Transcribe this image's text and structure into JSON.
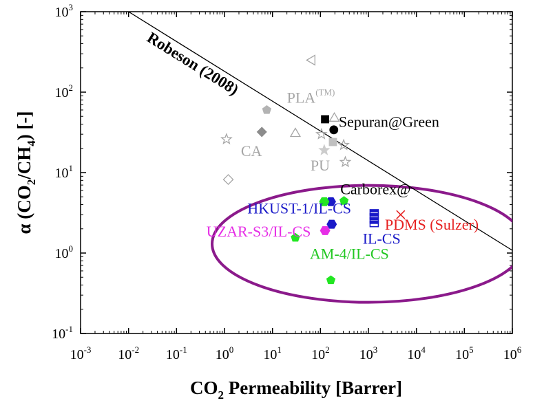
{
  "chart_data": {
    "type": "scatter",
    "xscale": "log",
    "yscale": "log",
    "xlim": [
      0.001,
      1000000
    ],
    "ylim": [
      0.1,
      1000
    ],
    "grid": false,
    "x_ticks": [
      {
        "base": "10",
        "exp": "-3",
        "value": 0.001
      },
      {
        "base": "10",
        "exp": "-2",
        "value": 0.01
      },
      {
        "base": "10",
        "exp": "-1",
        "value": 0.1
      },
      {
        "base": "10",
        "exp": "0",
        "value": 1
      },
      {
        "base": "10",
        "exp": "1",
        "value": 10
      },
      {
        "base": "10",
        "exp": "2",
        "value": 100
      },
      {
        "base": "10",
        "exp": "3",
        "value": 1000
      },
      {
        "base": "10",
        "exp": "4",
        "value": 10000
      },
      {
        "base": "10",
        "exp": "5",
        "value": 100000
      },
      {
        "base": "10",
        "exp": "6",
        "value": 1000000
      }
    ],
    "y_ticks": [
      {
        "base": "10",
        "exp": "-1",
        "value": 0.1
      },
      {
        "base": "10",
        "exp": "0",
        "value": 1
      },
      {
        "base": "10",
        "exp": "1",
        "value": 10
      },
      {
        "base": "10",
        "exp": "2",
        "value": 100
      },
      {
        "base": "10",
        "exp": "3",
        "value": 1000
      }
    ],
    "xlabel": {
      "pre": "CO",
      "sub": "2",
      "post": " Permeability [Barrer]"
    },
    "ylabel": {
      "alpha": "α",
      "pre": " (CO",
      "sub1": "2",
      "mid": "/CH",
      "sub2": "4",
      "post": ") [-]"
    },
    "robeson_line": {
      "label": "Robeson (2008)",
      "points": [
        {
          "x": 0.01,
          "y": 1000
        },
        {
          "x": 1000000,
          "y": 1.08
        }
      ]
    },
    "ellipse_region": {
      "cx": 1000,
      "cy": 1.3,
      "color": "#8b1a8b"
    },
    "annotations": [
      {
        "name": "pla-label",
        "text": "PLA",
        "sup": "(TM)",
        "x": 20,
        "y": 74,
        "color": "#a6a6a6"
      },
      {
        "name": "sepuran-label",
        "text": "Sepuran@Green",
        "x": 240,
        "y": 37,
        "color": "#000000"
      },
      {
        "name": "ca-label",
        "text": "CA",
        "x": 2.2,
        "y": 16,
        "color": "#a6a6a6"
      },
      {
        "name": "pu-label",
        "text": "PU",
        "x": 62,
        "y": 10.6,
        "color": "#a6a6a6"
      },
      {
        "name": "carborex-label",
        "text": "Carborex@",
        "x": 260,
        "y": 5.4,
        "color": "#000000"
      },
      {
        "name": "hkust-label",
        "text": "HKUST-1/IL-CS",
        "x": 3.0,
        "y": 3.1,
        "color": "#1a1ac8"
      },
      {
        "name": "uzar-label",
        "text": "UZAR-S3/IL-CS",
        "x": 0.42,
        "y": 1.6,
        "color": "#e62ee6"
      },
      {
        "name": "pdms-label",
        "text": "PDMS (Sulzer)",
        "x": 2200,
        "y": 1.95,
        "color": "#e62020"
      },
      {
        "name": "ilcs-label",
        "text": "IL-CS",
        "x": 760,
        "y": 1.3,
        "color": "#1a1ac8"
      },
      {
        "name": "am4-label",
        "text": "AM-4/IL-CS",
        "x": 60,
        "y": 0.85,
        "color": "#22c822"
      }
    ],
    "series": [
      {
        "marker": "triangle-left-open",
        "color": "#a6a6a6",
        "points": [
          {
            "x": 65,
            "y": 250
          }
        ]
      },
      {
        "marker": "pentagon",
        "color": "#b3b3b3",
        "points": [
          {
            "x": 7.6,
            "y": 60
          }
        ]
      },
      {
        "marker": "diamond",
        "color": "#8c8c8c",
        "points": [
          {
            "x": 6.0,
            "y": 32
          }
        ]
      },
      {
        "marker": "diamond-open",
        "color": "#a6a6a6",
        "points": [
          {
            "x": 1.2,
            "y": 8.2
          }
        ]
      },
      {
        "marker": "star-open",
        "color": "#a6a6a6",
        "points": [
          {
            "x": 1.1,
            "y": 26
          },
          {
            "x": 105,
            "y": 30
          },
          {
            "x": 305,
            "y": 22
          },
          {
            "x": 330,
            "y": 13.5
          }
        ]
      },
      {
        "marker": "star",
        "color": "#cccccc",
        "points": [
          {
            "x": 120,
            "y": 19
          }
        ]
      },
      {
        "marker": "triangle-open",
        "color": "#a6a6a6",
        "points": [
          {
            "x": 30,
            "y": 31
          },
          {
            "x": 195,
            "y": 48
          }
        ]
      },
      {
        "marker": "square",
        "color": "#000000",
        "points": [
          {
            "x": 125,
            "y": 46
          }
        ]
      },
      {
        "marker": "circle",
        "color": "#000000",
        "points": [
          {
            "x": 190,
            "y": 34
          }
        ]
      },
      {
        "marker": "square",
        "color": "#c0c0c0",
        "points": [
          {
            "x": 182,
            "y": 24
          }
        ]
      },
      {
        "marker": "cross",
        "color": "#e62020",
        "points": [
          {
            "x": 4700,
            "y": 3.0
          }
        ]
      },
      {
        "marker": "hexagon",
        "color": "#1a1ac8",
        "points": [
          {
            "x": 165,
            "y": 4.35
          },
          {
            "x": 172,
            "y": 2.28
          }
        ]
      },
      {
        "marker": "square-half",
        "color": "#1a1ac8",
        "points": [
          {
            "x": 1320,
            "y": 3.2
          },
          {
            "x": 1320,
            "y": 2.85
          },
          {
            "x": 1320,
            "y": 2.55
          },
          {
            "x": 1320,
            "y": 2.3
          }
        ]
      },
      {
        "marker": "hexagon",
        "color": "#e62ee6",
        "points": [
          {
            "x": 125,
            "y": 1.9
          }
        ]
      },
      {
        "marker": "hexagon",
        "color": "#22e622",
        "points": [
          {
            "x": 120,
            "y": 4.35
          }
        ]
      },
      {
        "marker": "pentagon",
        "color": "#22e622",
        "points": [
          {
            "x": 310,
            "y": 4.45
          },
          {
            "x": 30,
            "y": 1.55
          },
          {
            "x": 165,
            "y": 0.46
          }
        ]
      }
    ]
  }
}
